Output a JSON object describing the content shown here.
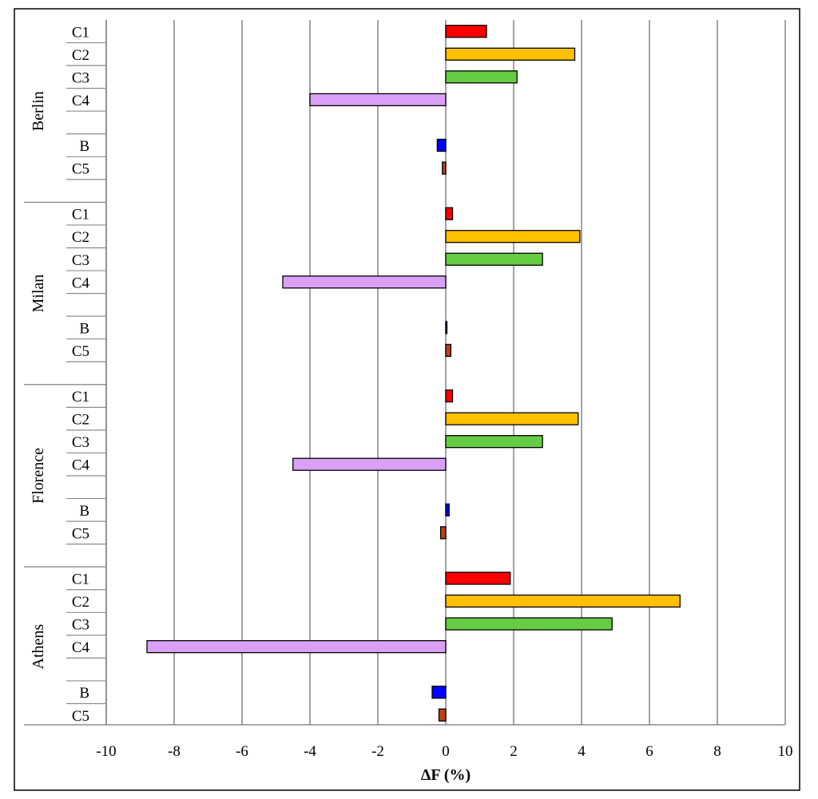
{
  "chart_data": {
    "type": "bar",
    "orientation": "horizontal",
    "title": "",
    "xlabel": "ΔF (%)",
    "ylabel": "",
    "xlim": [
      -10,
      10
    ],
    "xticks": [
      -10,
      -8,
      -6,
      -4,
      -2,
      0,
      2,
      4,
      6,
      8,
      10
    ],
    "grid": true,
    "legend": "none",
    "colors": {
      "C1": "#ff0000",
      "C2": "#ffc000",
      "C3": "#66cc44",
      "C4": "#d9a0f5",
      "B": "#0000ff",
      "C5": "#c0401a"
    },
    "groups": [
      {
        "name": "Berlin",
        "rows": [
          {
            "label": "C1",
            "value": 1.2
          },
          {
            "label": "C2",
            "value": 3.8
          },
          {
            "label": "C3",
            "value": 2.1
          },
          {
            "label": "C4",
            "value": -4.0
          },
          {
            "label": "",
            "value": null
          },
          {
            "label": "B",
            "value": -0.25
          },
          {
            "label": "C5",
            "value": -0.1
          },
          {
            "label": "",
            "value": null
          }
        ]
      },
      {
        "name": "Milan",
        "rows": [
          {
            "label": "C1",
            "value": 0.2
          },
          {
            "label": "C2",
            "value": 3.95
          },
          {
            "label": "C3",
            "value": 2.85
          },
          {
            "label": "C4",
            "value": -4.8
          },
          {
            "label": "",
            "value": null
          },
          {
            "label": "B",
            "value": 0.03
          },
          {
            "label": "C5",
            "value": 0.15
          },
          {
            "label": "",
            "value": null
          }
        ]
      },
      {
        "name": "Florence",
        "rows": [
          {
            "label": "C1",
            "value": 0.2
          },
          {
            "label": "C2",
            "value": 3.9
          },
          {
            "label": "C3",
            "value": 2.85
          },
          {
            "label": "C4",
            "value": -4.5
          },
          {
            "label": "",
            "value": null
          },
          {
            "label": "B",
            "value": 0.1
          },
          {
            "label": "C5",
            "value": -0.15
          },
          {
            "label": "",
            "value": null
          }
        ]
      },
      {
        "name": "Athens",
        "rows": [
          {
            "label": "C1",
            "value": 1.9
          },
          {
            "label": "C2",
            "value": 6.9
          },
          {
            "label": "C3",
            "value": 4.9
          },
          {
            "label": "C4",
            "value": -8.8
          },
          {
            "label": "",
            "value": null
          },
          {
            "label": "B",
            "value": -0.4
          },
          {
            "label": "C5",
            "value": -0.2
          }
        ]
      }
    ]
  }
}
